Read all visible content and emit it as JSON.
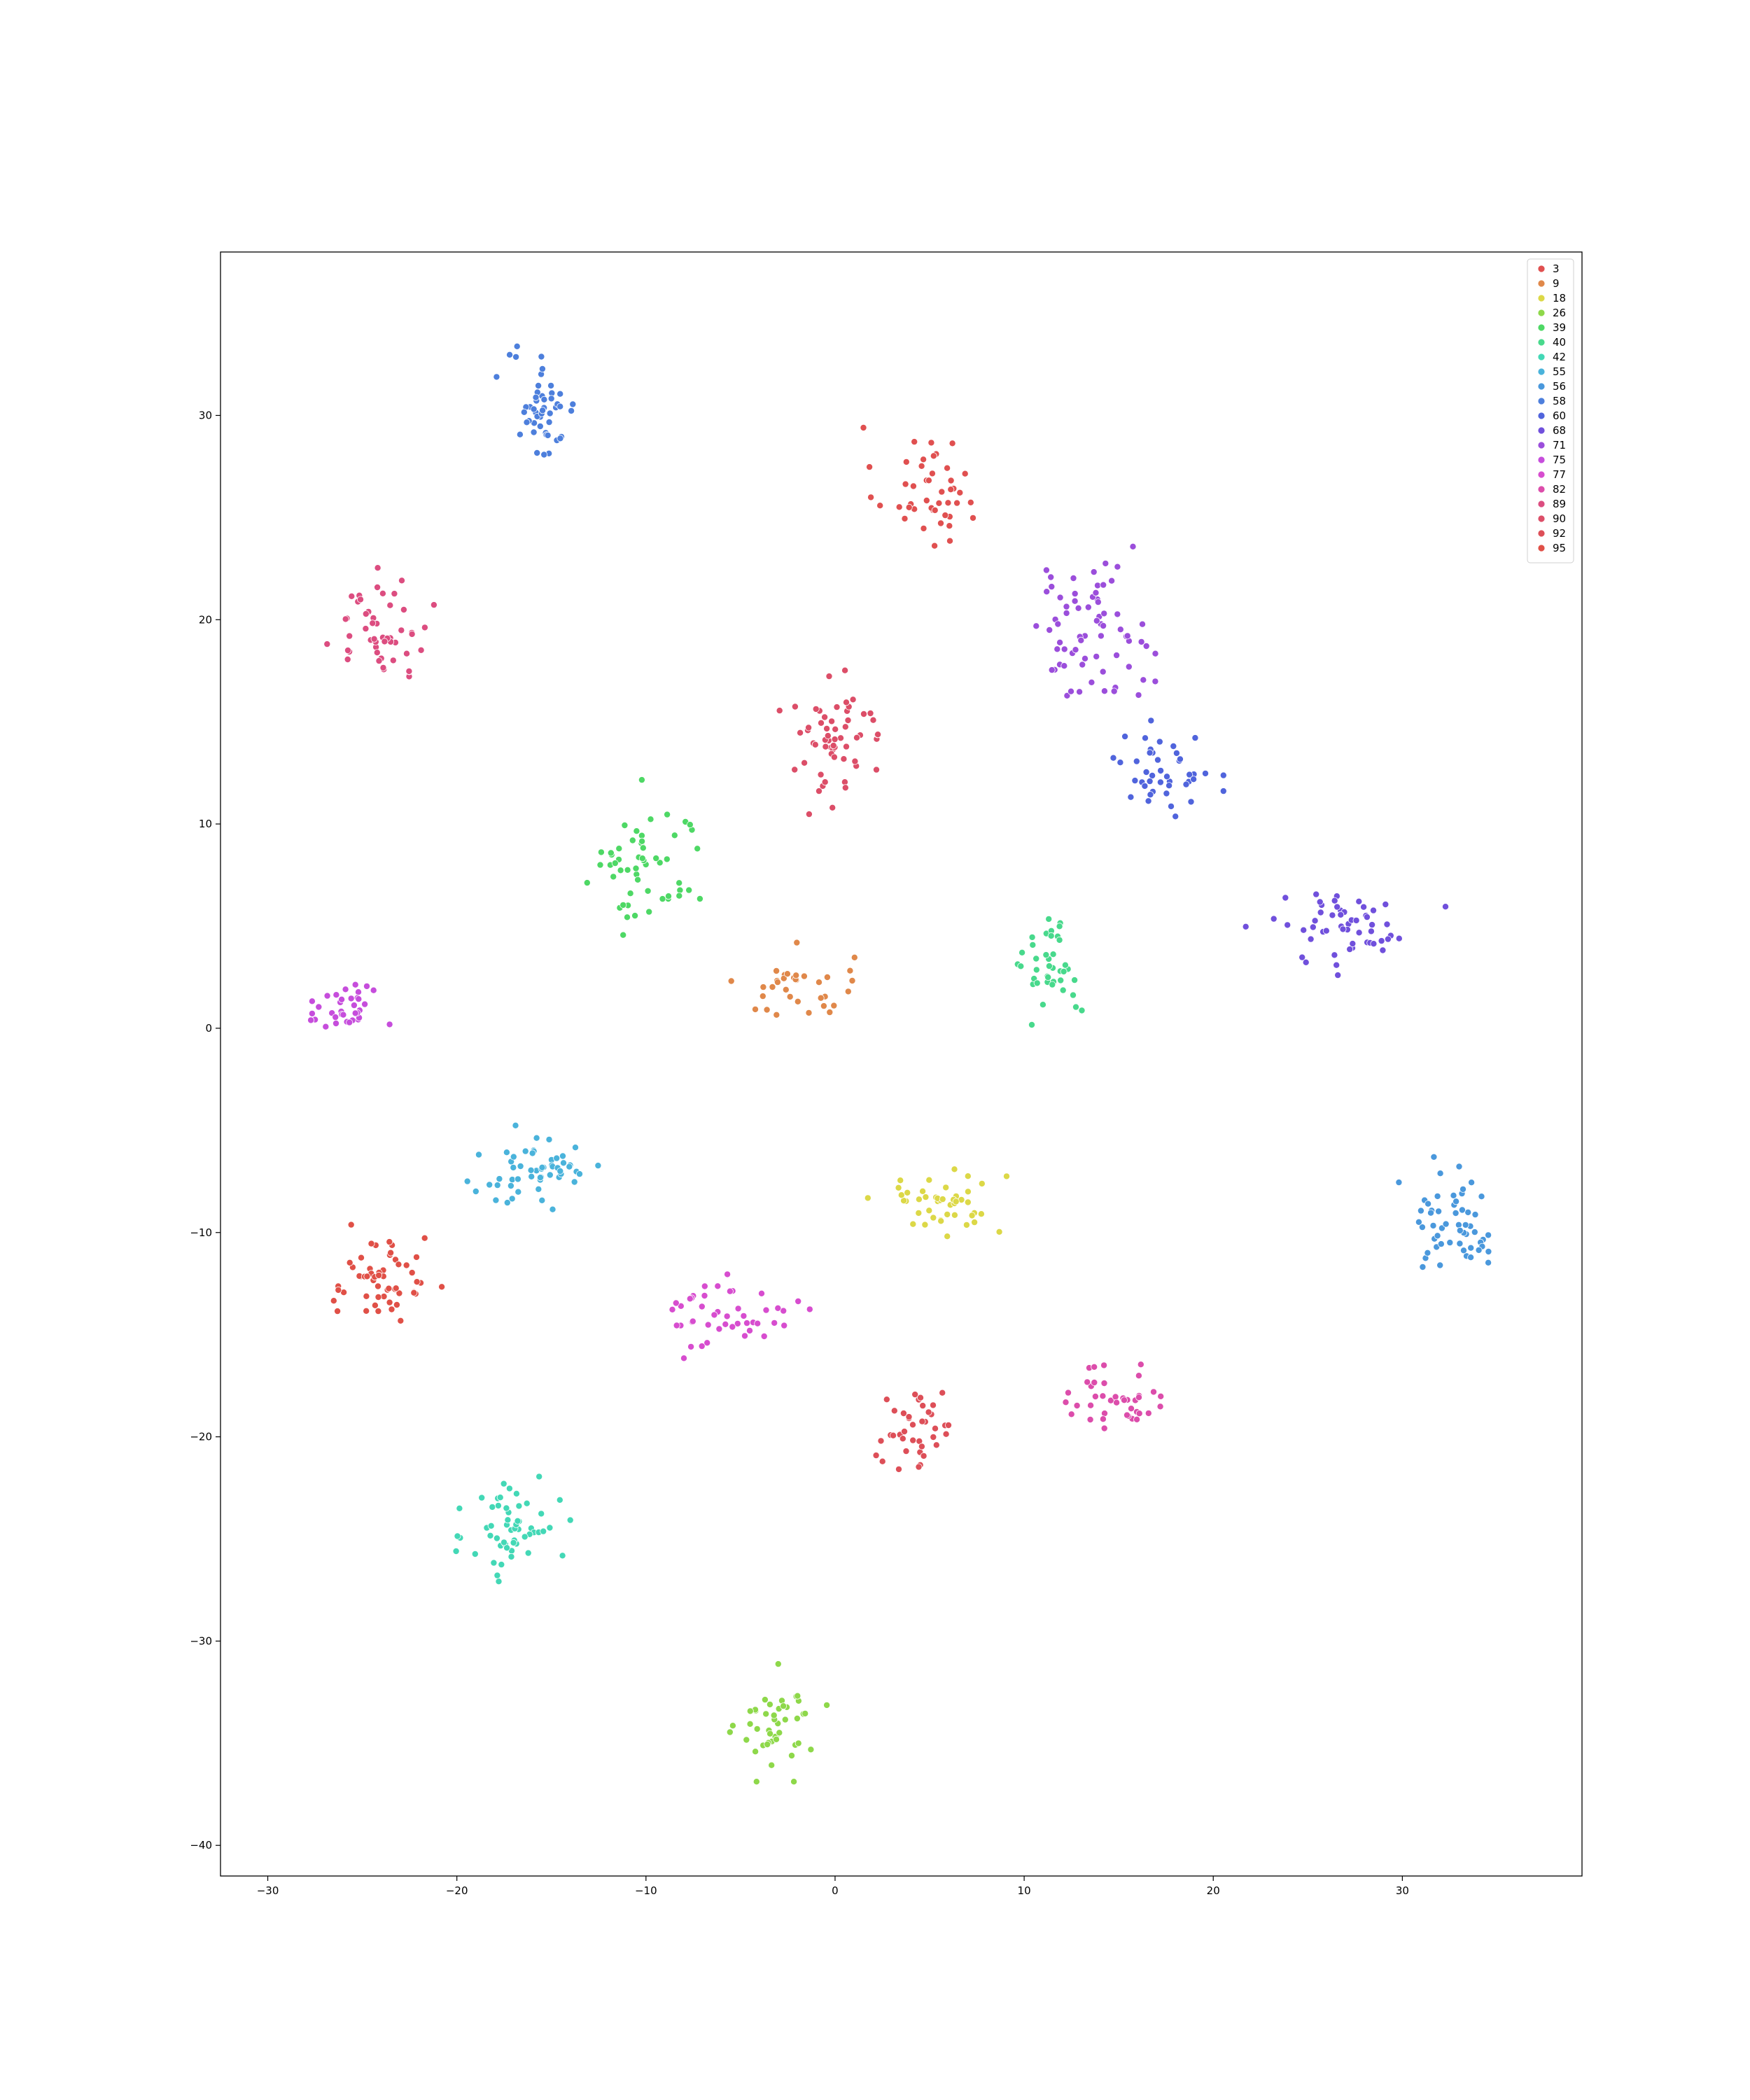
{
  "chart_data": {
    "type": "scatter",
    "title": "",
    "xlabel": "",
    "ylabel": "",
    "xlim": [
      -32.5,
      39.5
    ],
    "ylim": [
      -41.5,
      38
    ],
    "xticks": [
      -30,
      -20,
      -10,
      0,
      10,
      20,
      30
    ],
    "yticks": [
      -40,
      -30,
      -20,
      -10,
      0,
      10,
      20,
      30
    ],
    "tick_labels_x": [
      "−30",
      "−20",
      "−10",
      "0",
      "10",
      "20",
      "30"
    ],
    "tick_labels_y": [
      "−40",
      "−30",
      "−20",
      "−10",
      "0",
      "10",
      "20",
      "30"
    ],
    "grid": false,
    "legend_position": "top-right",
    "series": [
      {
        "name": "3",
        "color": "#e05050",
        "cluster": {
          "center": [
            4.8,
            26.5
          ],
          "spread": [
            2.2,
            2.4
          ],
          "n": 45
        }
      },
      {
        "name": "9",
        "color": "#e0884a",
        "cluster": {
          "center": [
            -2.0,
            2.0
          ],
          "spread": [
            2.4,
            1.4
          ],
          "n": 35
        }
      },
      {
        "name": "18",
        "color": "#dcd847",
        "cluster": {
          "center": [
            5.5,
            -8.5
          ],
          "spread": [
            2.8,
            1.3
          ],
          "n": 45
        }
      },
      {
        "name": "26",
        "color": "#8ed84a",
        "cluster": {
          "center": [
            -3.0,
            -34.0
          ],
          "spread": [
            1.6,
            1.8
          ],
          "n": 45
        }
      },
      {
        "name": "39",
        "color": "#4ed865",
        "cluster": {
          "center": [
            -10.0,
            8.0
          ],
          "spread": [
            2.6,
            2.6
          ],
          "n": 55
        }
      },
      {
        "name": "40",
        "color": "#48d98c",
        "cluster": {
          "center": [
            11.5,
            3.0
          ],
          "spread": [
            1.2,
            2.0
          ],
          "n": 40
        }
      },
      {
        "name": "42",
        "color": "#43d8b6",
        "cluster": {
          "center": [
            -17.0,
            -24.5
          ],
          "spread": [
            1.9,
            2.1
          ],
          "n": 55
        }
      },
      {
        "name": "55",
        "color": "#4ab3db",
        "cluster": {
          "center": [
            -16.0,
            -7.0
          ],
          "spread": [
            3.0,
            1.4
          ],
          "n": 55
        }
      },
      {
        "name": "56",
        "color": "#4a98dc",
        "cluster": {
          "center": [
            33.0,
            -9.5
          ],
          "spread": [
            2.0,
            2.0
          ],
          "n": 55
        }
      },
      {
        "name": "58",
        "color": "#4d7fdc",
        "cluster": {
          "center": [
            -15.5,
            30.5
          ],
          "spread": [
            1.5,
            2.1
          ],
          "n": 50
        }
      },
      {
        "name": "60",
        "color": "#5064dc",
        "cluster": {
          "center": [
            17.5,
            12.5
          ],
          "spread": [
            1.9,
            1.6
          ],
          "n": 45
        }
      },
      {
        "name": "68",
        "color": "#7050dc",
        "cluster": {
          "center": [
            27.0,
            5.0
          ],
          "spread": [
            3.3,
            1.5
          ],
          "n": 55
        }
      },
      {
        "name": "71",
        "color": "#9b4edb",
        "cluster": {
          "center": [
            13.5,
            19.5
          ],
          "spread": [
            2.6,
            2.6
          ],
          "n": 70
        }
      },
      {
        "name": "75",
        "color": "#c64ddc",
        "cluster": {
          "center": [
            -26.0,
            1.0
          ],
          "spread": [
            1.7,
            1.1
          ],
          "n": 35
        }
      },
      {
        "name": "77",
        "color": "#d74dcf",
        "cluster": {
          "center": [
            -5.5,
            -14.0
          ],
          "spread": [
            2.6,
            1.4
          ],
          "n": 45
        }
      },
      {
        "name": "82",
        "color": "#dc4dab",
        "cluster": {
          "center": [
            15.0,
            -18.0
          ],
          "spread": [
            2.2,
            1.4
          ],
          "n": 40
        }
      },
      {
        "name": "89",
        "color": "#dc4d80",
        "cluster": {
          "center": [
            -24.0,
            19.5
          ],
          "spread": [
            2.0,
            1.9
          ],
          "n": 50
        }
      },
      {
        "name": "90",
        "color": "#dc4e68",
        "cluster": {
          "center": [
            0.0,
            14.0
          ],
          "spread": [
            2.3,
            2.2
          ],
          "n": 60
        }
      },
      {
        "name": "92",
        "color": "#dd4f58",
        "cluster": {
          "center": [
            4.5,
            -19.5
          ],
          "spread": [
            1.7,
            1.7
          ],
          "n": 40
        }
      },
      {
        "name": "95",
        "color": "#e05047",
        "cluster": {
          "center": [
            -24.0,
            -12.5
          ],
          "spread": [
            2.0,
            1.9
          ],
          "n": 55
        }
      }
    ]
  }
}
